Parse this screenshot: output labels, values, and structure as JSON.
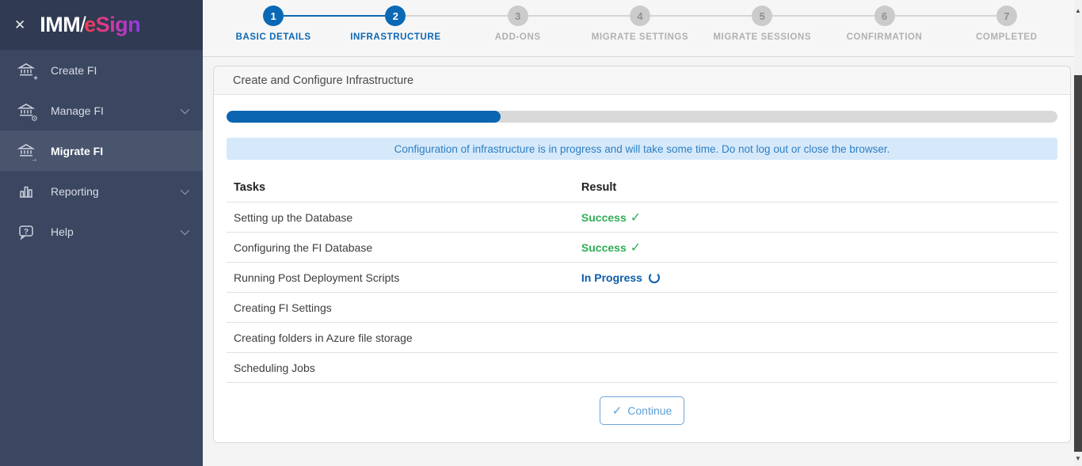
{
  "sidebar": {
    "logo": {
      "imm": "IMM",
      "slash": "/",
      "esign": "eSign"
    },
    "close_label": "✕",
    "items": [
      {
        "label": "Create FI",
        "icon": "bank-plus-icon",
        "badge": "+",
        "expandable": false,
        "active": false
      },
      {
        "label": "Manage FI",
        "icon": "bank-gear-icon",
        "badge": "⚙",
        "expandable": true,
        "active": false
      },
      {
        "label": "Migrate FI",
        "icon": "bank-arrow-icon",
        "badge": "→",
        "expandable": false,
        "active": true
      },
      {
        "label": "Reporting",
        "icon": "bar-chart-icon",
        "badge": "",
        "expandable": true,
        "active": false
      },
      {
        "label": "Help",
        "icon": "help-bubble-icon",
        "badge": "",
        "expandable": true,
        "active": false
      }
    ]
  },
  "stepper": {
    "steps": [
      {
        "number": "1",
        "label": "BASIC DETAILS",
        "state": "complete"
      },
      {
        "number": "2",
        "label": "INFRASTRUCTURE",
        "state": "active"
      },
      {
        "number": "3",
        "label": "ADD-ONS",
        "state": "pending"
      },
      {
        "number": "4",
        "label": "MIGRATE SETTINGS",
        "state": "pending"
      },
      {
        "number": "5",
        "label": "MIGRATE SESSIONS",
        "state": "pending"
      },
      {
        "number": "6",
        "label": "CONFIRMATION",
        "state": "pending"
      },
      {
        "number": "7",
        "label": "COMPLETED",
        "state": "pending"
      }
    ]
  },
  "panel": {
    "title": "Create and Configure Infrastructure",
    "progress_percent": 33,
    "alert_message": "Configuration of infrastructure is in progress and will take some time. Do not log out or close the browser.",
    "table": {
      "headers": [
        "Tasks",
        "Result"
      ],
      "rows": [
        {
          "task": "Setting up the Database",
          "result": "Success",
          "status": "success"
        },
        {
          "task": "Configuring the FI Database",
          "result": "Success",
          "status": "success"
        },
        {
          "task": "Running Post Deployment Scripts",
          "result": "In Progress",
          "status": "in-progress"
        },
        {
          "task": "Creating FI Settings",
          "result": "",
          "status": "pending"
        },
        {
          "task": "Creating folders in Azure file storage",
          "result": "",
          "status": "pending"
        },
        {
          "task": "Scheduling Jobs",
          "result": "",
          "status": "pending"
        }
      ]
    },
    "continue_label": "Continue",
    "continue_check": "✓",
    "success_check": "✓"
  },
  "colors": {
    "accent_blue": "#0b68b4",
    "progress_blue": "#0b65b0",
    "in_progress_blue": "#0d5cab",
    "success_green": "#2fae55",
    "alert_bg": "#d6e9fb",
    "alert_text": "#2e7fc2",
    "sidebar_bg": "#3b4660",
    "sidebar_header_bg": "#303a52",
    "sidebar_active_bg": "#49546d"
  }
}
